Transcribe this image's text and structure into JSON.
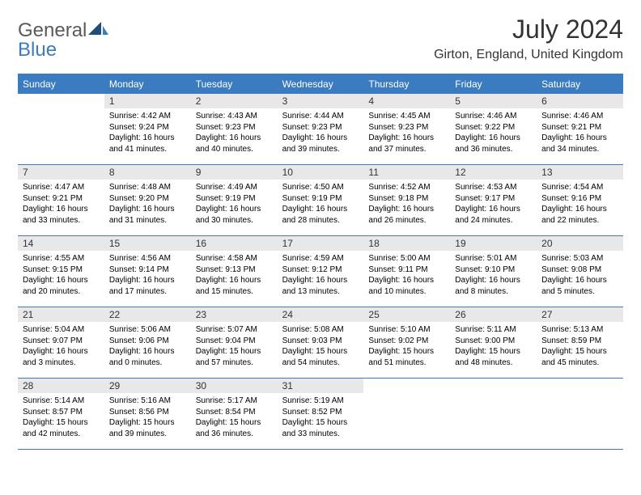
{
  "brand": {
    "name_a": "General",
    "name_b": "Blue"
  },
  "title": "July 2024",
  "location": "Girton, England, United Kingdom",
  "colors": {
    "header_bg": "#3b7bbf",
    "header_text": "#ffffff",
    "daynum_bg": "#e8e8e8",
    "border": "#3b7bbf",
    "body_text": "#000000"
  },
  "typography": {
    "title_fontsize": 32,
    "location_fontsize": 16,
    "weekday_fontsize": 12,
    "cell_fontsize": 10
  },
  "weekdays": [
    "Sunday",
    "Monday",
    "Tuesday",
    "Wednesday",
    "Thursday",
    "Friday",
    "Saturday"
  ],
  "leading_blanks": 1,
  "days": [
    {
      "n": "1",
      "sunrise": "Sunrise: 4:42 AM",
      "sunset": "Sunset: 9:24 PM",
      "day1": "Daylight: 16 hours",
      "day2": "and 41 minutes."
    },
    {
      "n": "2",
      "sunrise": "Sunrise: 4:43 AM",
      "sunset": "Sunset: 9:23 PM",
      "day1": "Daylight: 16 hours",
      "day2": "and 40 minutes."
    },
    {
      "n": "3",
      "sunrise": "Sunrise: 4:44 AM",
      "sunset": "Sunset: 9:23 PM",
      "day1": "Daylight: 16 hours",
      "day2": "and 39 minutes."
    },
    {
      "n": "4",
      "sunrise": "Sunrise: 4:45 AM",
      "sunset": "Sunset: 9:23 PM",
      "day1": "Daylight: 16 hours",
      "day2": "and 37 minutes."
    },
    {
      "n": "5",
      "sunrise": "Sunrise: 4:46 AM",
      "sunset": "Sunset: 9:22 PM",
      "day1": "Daylight: 16 hours",
      "day2": "and 36 minutes."
    },
    {
      "n": "6",
      "sunrise": "Sunrise: 4:46 AM",
      "sunset": "Sunset: 9:21 PM",
      "day1": "Daylight: 16 hours",
      "day2": "and 34 minutes."
    },
    {
      "n": "7",
      "sunrise": "Sunrise: 4:47 AM",
      "sunset": "Sunset: 9:21 PM",
      "day1": "Daylight: 16 hours",
      "day2": "and 33 minutes."
    },
    {
      "n": "8",
      "sunrise": "Sunrise: 4:48 AM",
      "sunset": "Sunset: 9:20 PM",
      "day1": "Daylight: 16 hours",
      "day2": "and 31 minutes."
    },
    {
      "n": "9",
      "sunrise": "Sunrise: 4:49 AM",
      "sunset": "Sunset: 9:19 PM",
      "day1": "Daylight: 16 hours",
      "day2": "and 30 minutes."
    },
    {
      "n": "10",
      "sunrise": "Sunrise: 4:50 AM",
      "sunset": "Sunset: 9:19 PM",
      "day1": "Daylight: 16 hours",
      "day2": "and 28 minutes."
    },
    {
      "n": "11",
      "sunrise": "Sunrise: 4:52 AM",
      "sunset": "Sunset: 9:18 PM",
      "day1": "Daylight: 16 hours",
      "day2": "and 26 minutes."
    },
    {
      "n": "12",
      "sunrise": "Sunrise: 4:53 AM",
      "sunset": "Sunset: 9:17 PM",
      "day1": "Daylight: 16 hours",
      "day2": "and 24 minutes."
    },
    {
      "n": "13",
      "sunrise": "Sunrise: 4:54 AM",
      "sunset": "Sunset: 9:16 PM",
      "day1": "Daylight: 16 hours",
      "day2": "and 22 minutes."
    },
    {
      "n": "14",
      "sunrise": "Sunrise: 4:55 AM",
      "sunset": "Sunset: 9:15 PM",
      "day1": "Daylight: 16 hours",
      "day2": "and 20 minutes."
    },
    {
      "n": "15",
      "sunrise": "Sunrise: 4:56 AM",
      "sunset": "Sunset: 9:14 PM",
      "day1": "Daylight: 16 hours",
      "day2": "and 17 minutes."
    },
    {
      "n": "16",
      "sunrise": "Sunrise: 4:58 AM",
      "sunset": "Sunset: 9:13 PM",
      "day1": "Daylight: 16 hours",
      "day2": "and 15 minutes."
    },
    {
      "n": "17",
      "sunrise": "Sunrise: 4:59 AM",
      "sunset": "Sunset: 9:12 PM",
      "day1": "Daylight: 16 hours",
      "day2": "and 13 minutes."
    },
    {
      "n": "18",
      "sunrise": "Sunrise: 5:00 AM",
      "sunset": "Sunset: 9:11 PM",
      "day1": "Daylight: 16 hours",
      "day2": "and 10 minutes."
    },
    {
      "n": "19",
      "sunrise": "Sunrise: 5:01 AM",
      "sunset": "Sunset: 9:10 PM",
      "day1": "Daylight: 16 hours",
      "day2": "and 8 minutes."
    },
    {
      "n": "20",
      "sunrise": "Sunrise: 5:03 AM",
      "sunset": "Sunset: 9:08 PM",
      "day1": "Daylight: 16 hours",
      "day2": "and 5 minutes."
    },
    {
      "n": "21",
      "sunrise": "Sunrise: 5:04 AM",
      "sunset": "Sunset: 9:07 PM",
      "day1": "Daylight: 16 hours",
      "day2": "and 3 minutes."
    },
    {
      "n": "22",
      "sunrise": "Sunrise: 5:06 AM",
      "sunset": "Sunset: 9:06 PM",
      "day1": "Daylight: 16 hours",
      "day2": "and 0 minutes."
    },
    {
      "n": "23",
      "sunrise": "Sunrise: 5:07 AM",
      "sunset": "Sunset: 9:04 PM",
      "day1": "Daylight: 15 hours",
      "day2": "and 57 minutes."
    },
    {
      "n": "24",
      "sunrise": "Sunrise: 5:08 AM",
      "sunset": "Sunset: 9:03 PM",
      "day1": "Daylight: 15 hours",
      "day2": "and 54 minutes."
    },
    {
      "n": "25",
      "sunrise": "Sunrise: 5:10 AM",
      "sunset": "Sunset: 9:02 PM",
      "day1": "Daylight: 15 hours",
      "day2": "and 51 minutes."
    },
    {
      "n": "26",
      "sunrise": "Sunrise: 5:11 AM",
      "sunset": "Sunset: 9:00 PM",
      "day1": "Daylight: 15 hours",
      "day2": "and 48 minutes."
    },
    {
      "n": "27",
      "sunrise": "Sunrise: 5:13 AM",
      "sunset": "Sunset: 8:59 PM",
      "day1": "Daylight: 15 hours",
      "day2": "and 45 minutes."
    },
    {
      "n": "28",
      "sunrise": "Sunrise: 5:14 AM",
      "sunset": "Sunset: 8:57 PM",
      "day1": "Daylight: 15 hours",
      "day2": "and 42 minutes."
    },
    {
      "n": "29",
      "sunrise": "Sunrise: 5:16 AM",
      "sunset": "Sunset: 8:56 PM",
      "day1": "Daylight: 15 hours",
      "day2": "and 39 minutes."
    },
    {
      "n": "30",
      "sunrise": "Sunrise: 5:17 AM",
      "sunset": "Sunset: 8:54 PM",
      "day1": "Daylight: 15 hours",
      "day2": "and 36 minutes."
    },
    {
      "n": "31",
      "sunrise": "Sunrise: 5:19 AM",
      "sunset": "Sunset: 8:52 PM",
      "day1": "Daylight: 15 hours",
      "day2": "and 33 minutes."
    }
  ]
}
